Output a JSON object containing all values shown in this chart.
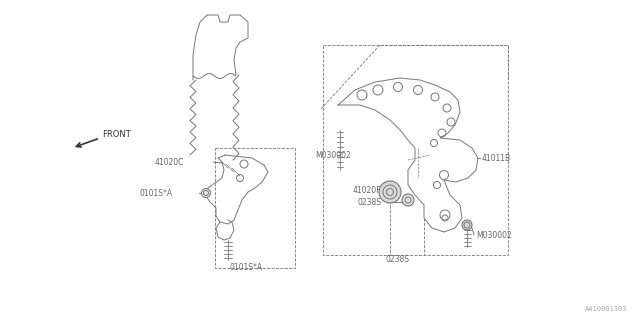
{
  "bg_color": "#ffffff",
  "line_color": "#777777",
  "text_color": "#666666",
  "fig_width": 6.4,
  "fig_height": 3.2,
  "dpi": 100,
  "watermark": "A410001303",
  "labels": {
    "front": "FRONT",
    "41020C": "41020C",
    "0101S_A_left": "0101S*A",
    "0101S_A_bot": "0101S*A",
    "41011B": "41011B",
    "M030002_top": "M030002",
    "M030002_bot": "M030002",
    "41020F": "41020F",
    "0238S_top": "0238S",
    "0238S_bot": "0238S"
  }
}
